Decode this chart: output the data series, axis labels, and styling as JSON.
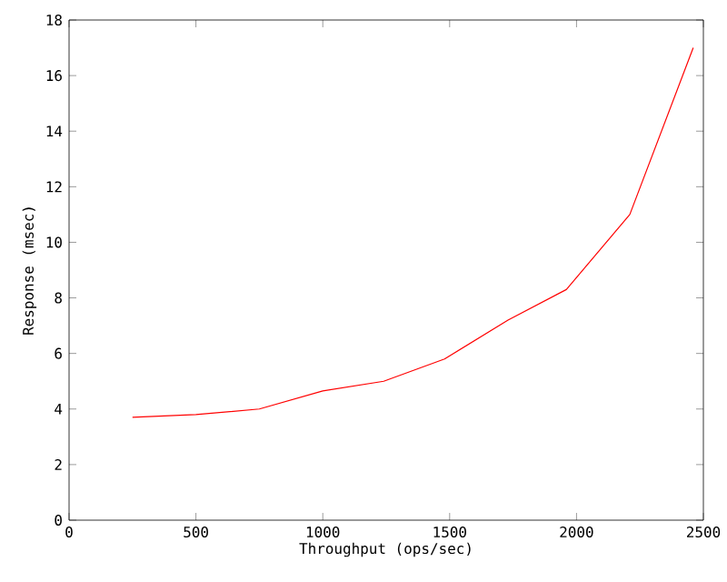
{
  "chart_data": {
    "type": "line",
    "xlabel": "Throughput (ops/sec)",
    "ylabel": "Response (msec)",
    "x": [
      250,
      500,
      750,
      1000,
      1240,
      1480,
      1730,
      1960,
      2210,
      2460
    ],
    "series": [
      {
        "color": "#ff0000",
        "values": [
          3.7,
          3.8,
          4.0,
          4.65,
          5.0,
          5.8,
          7.2,
          8.3,
          11.0,
          17.0
        ]
      }
    ],
    "xlim": [
      0,
      2500
    ],
    "ylim": [
      0,
      18
    ],
    "xticks": [
      0,
      500,
      1000,
      1500,
      2000,
      2500
    ],
    "yticks": [
      0,
      2,
      4,
      6,
      8,
      10,
      12,
      14,
      16,
      18
    ],
    "grid": false,
    "marker": "none",
    "line_style": "solid"
  }
}
